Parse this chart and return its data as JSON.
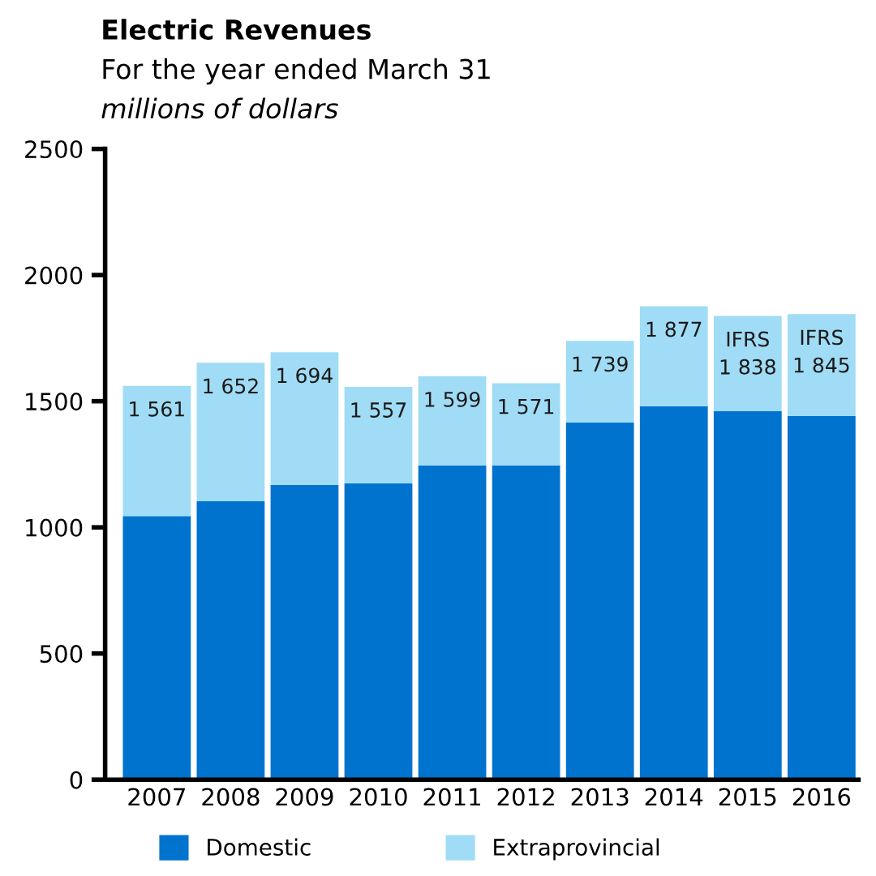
{
  "chart_data": {
    "type": "bar",
    "title": "Electric Revenues",
    "subtitle": "For the year ended March 31",
    "ylabel": "millions of dollars",
    "categories": [
      "2007",
      "2008",
      "2009",
      "2010",
      "2011",
      "2012",
      "2013",
      "2014",
      "2015",
      "2016"
    ],
    "stacked": true,
    "series": [
      {
        "name": "Domestic",
        "color": "#0073cf",
        "values": [
          1045,
          1103,
          1168,
          1175,
          1246,
          1246,
          1415,
          1480,
          1460,
          1441
        ]
      },
      {
        "name": "Extraprovincial",
        "color": "#a0dcf5",
        "values": [
          516,
          549,
          526,
          382,
          353,
          325,
          324,
          397,
          378,
          404
        ]
      }
    ],
    "totals": [
      "1 561",
      "1 652",
      "1 694",
      "1 557",
      "1 599",
      "1 571",
      "1 739",
      "1 877",
      "1 838",
      "1 845"
    ],
    "annotations": [
      {
        "text": "IFRS",
        "x": "2015",
        "y": 1838
      },
      {
        "text": "IFRS",
        "x": "2016",
        "y": 1845
      }
    ],
    "ylim": [
      0,
      2500
    ],
    "yticks": [
      0,
      500,
      1000,
      1500,
      2000,
      2500
    ],
    "grid": false,
    "legend": "bottom"
  }
}
